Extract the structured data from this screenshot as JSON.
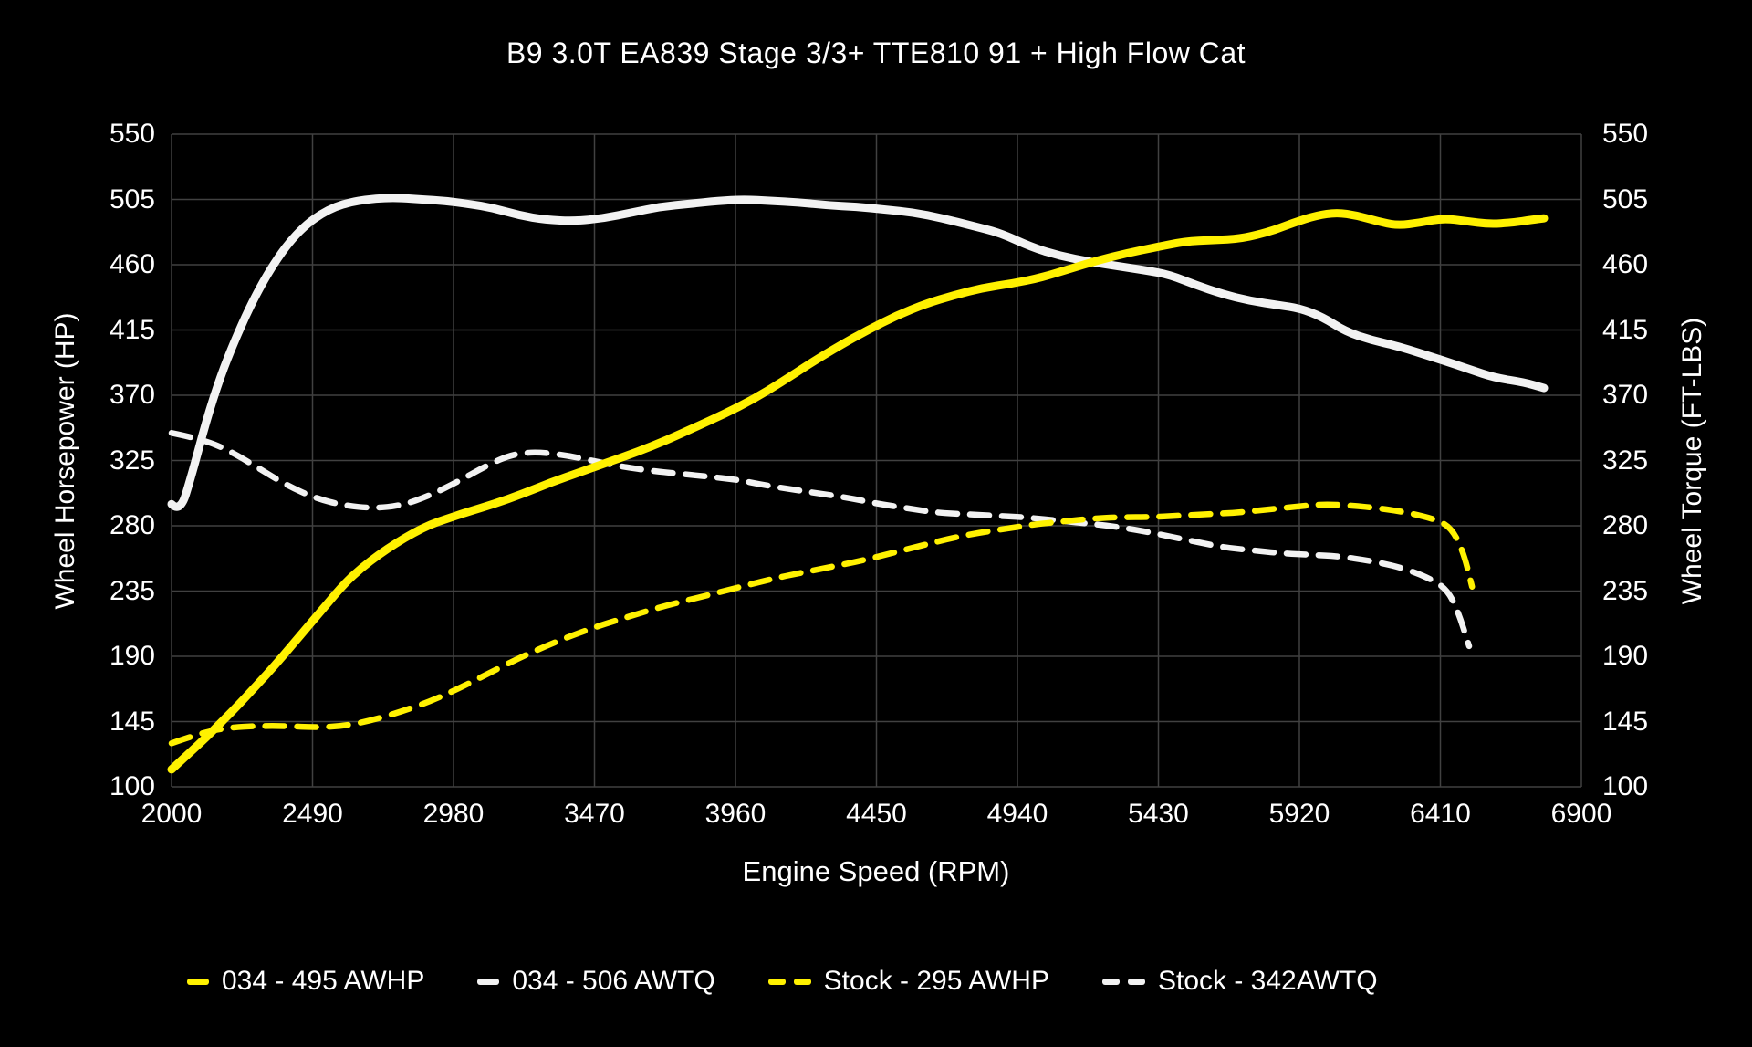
{
  "page": {
    "background": "#000000"
  },
  "chart_data": {
    "type": "line",
    "title": "B9 3.0T EA839 Stage 3/3+ TTE810 91 + High Flow Cat",
    "xlabel": "Engine Speed (RPM)",
    "ylabel_left": "Wheel Horsepower (HP)",
    "ylabel_right": "Wheel Torque (FT-LBS)",
    "xlim": [
      2000,
      6900
    ],
    "ylim": [
      100,
      550
    ],
    "x_ticks": [
      2000,
      2490,
      2980,
      3470,
      3960,
      4450,
      4940,
      5430,
      5920,
      6410,
      6900
    ],
    "y_ticks": [
      100,
      145,
      190,
      235,
      280,
      325,
      370,
      415,
      460,
      505,
      550
    ],
    "grid": true,
    "legend_position": "bottom",
    "colors": {
      "grid": "#414141",
      "text": "#ffffff",
      "yellow": "#fff100",
      "white": "#f2f2f2"
    },
    "draw_order": [
      3,
      2,
      1,
      0
    ],
    "series": [
      {
        "name": "034 - 495 AWHP",
        "color": "#fff100",
        "style": "solid",
        "points": [
          [
            2000,
            112
          ],
          [
            2060,
            123
          ],
          [
            2120,
            134
          ],
          [
            2180,
            146
          ],
          [
            2240,
            158
          ],
          [
            2300,
            171
          ],
          [
            2360,
            184
          ],
          [
            2420,
            198
          ],
          [
            2480,
            212
          ],
          [
            2540,
            226
          ],
          [
            2600,
            240
          ],
          [
            2660,
            251
          ],
          [
            2720,
            260
          ],
          [
            2780,
            268
          ],
          [
            2840,
            275
          ],
          [
            2900,
            281
          ],
          [
            2960,
            285
          ],
          [
            3020,
            289
          ],
          [
            3120,
            295
          ],
          [
            3220,
            302
          ],
          [
            3320,
            310
          ],
          [
            3420,
            317
          ],
          [
            3520,
            324
          ],
          [
            3620,
            331
          ],
          [
            3720,
            339
          ],
          [
            3820,
            348
          ],
          [
            3920,
            357
          ],
          [
            4020,
            367
          ],
          [
            4120,
            379
          ],
          [
            4220,
            392
          ],
          [
            4320,
            404
          ],
          [
            4420,
            415
          ],
          [
            4520,
            425
          ],
          [
            4620,
            433
          ],
          [
            4720,
            439
          ],
          [
            4820,
            444
          ],
          [
            4920,
            447
          ],
          [
            5020,
            451
          ],
          [
            5120,
            457
          ],
          [
            5220,
            463
          ],
          [
            5320,
            468
          ],
          [
            5420,
            472
          ],
          [
            5520,
            476
          ],
          [
            5620,
            477
          ],
          [
            5720,
            478
          ],
          [
            5820,
            483
          ],
          [
            5900,
            489
          ],
          [
            5980,
            494
          ],
          [
            6050,
            496
          ],
          [
            6120,
            494
          ],
          [
            6190,
            490
          ],
          [
            6260,
            487
          ],
          [
            6340,
            489
          ],
          [
            6420,
            492
          ],
          [
            6500,
            490
          ],
          [
            6580,
            488
          ],
          [
            6660,
            489
          ],
          [
            6730,
            491
          ],
          [
            6770,
            492
          ]
        ]
      },
      {
        "name": "034 - 506 AWTQ",
        "color": "#f2f2f2",
        "style": "solid",
        "points": [
          [
            2000,
            295
          ],
          [
            2030,
            289
          ],
          [
            2070,
            315
          ],
          [
            2120,
            352
          ],
          [
            2170,
            383
          ],
          [
            2220,
            408
          ],
          [
            2270,
            430
          ],
          [
            2320,
            449
          ],
          [
            2370,
            465
          ],
          [
            2420,
            478
          ],
          [
            2470,
            488
          ],
          [
            2520,
            495
          ],
          [
            2570,
            500
          ],
          [
            2620,
            503
          ],
          [
            2680,
            505
          ],
          [
            2740,
            506
          ],
          [
            2800,
            506
          ],
          [
            2870,
            505
          ],
          [
            2950,
            504
          ],
          [
            3030,
            502
          ],
          [
            3120,
            499
          ],
          [
            3210,
            494
          ],
          [
            3300,
            491
          ],
          [
            3400,
            490
          ],
          [
            3500,
            492
          ],
          [
            3600,
            496
          ],
          [
            3700,
            500
          ],
          [
            3800,
            502
          ],
          [
            3900,
            504
          ],
          [
            3990,
            505
          ],
          [
            4080,
            504
          ],
          [
            4180,
            503
          ],
          [
            4280,
            501
          ],
          [
            4380,
            500
          ],
          [
            4480,
            498
          ],
          [
            4580,
            496
          ],
          [
            4680,
            492
          ],
          [
            4780,
            487
          ],
          [
            4880,
            482
          ],
          [
            4990,
            472
          ],
          [
            5090,
            466
          ],
          [
            5190,
            462
          ],
          [
            5290,
            459
          ],
          [
            5390,
            456
          ],
          [
            5470,
            453
          ],
          [
            5560,
            446
          ],
          [
            5650,
            440
          ],
          [
            5750,
            435
          ],
          [
            5850,
            432
          ],
          [
            5920,
            430
          ],
          [
            6000,
            424
          ],
          [
            6080,
            414
          ],
          [
            6170,
            408
          ],
          [
            6260,
            404
          ],
          [
            6340,
            399
          ],
          [
            6420,
            394
          ],
          [
            6510,
            388
          ],
          [
            6600,
            382
          ],
          [
            6700,
            379
          ],
          [
            6770,
            375
          ]
        ]
      },
      {
        "name": "Stock - 295 AWHP",
        "color": "#fff100",
        "style": "dashed",
        "points": [
          [
            2000,
            130
          ],
          [
            2100,
            137
          ],
          [
            2200,
            141
          ],
          [
            2300,
            142
          ],
          [
            2400,
            142
          ],
          [
            2500,
            141
          ],
          [
            2600,
            142
          ],
          [
            2700,
            146
          ],
          [
            2800,
            152
          ],
          [
            2900,
            159
          ],
          [
            3000,
            168
          ],
          [
            3100,
            178
          ],
          [
            3200,
            188
          ],
          [
            3300,
            197
          ],
          [
            3400,
            205
          ],
          [
            3500,
            212
          ],
          [
            3600,
            218
          ],
          [
            3700,
            224
          ],
          [
            3800,
            229
          ],
          [
            3900,
            234
          ],
          [
            4000,
            239
          ],
          [
            4100,
            244
          ],
          [
            4200,
            248
          ],
          [
            4300,
            252
          ],
          [
            4400,
            256
          ],
          [
            4500,
            261
          ],
          [
            4600,
            266
          ],
          [
            4700,
            271
          ],
          [
            4800,
            275
          ],
          [
            4900,
            278
          ],
          [
            5000,
            281
          ],
          [
            5100,
            283
          ],
          [
            5200,
            285
          ],
          [
            5300,
            286
          ],
          [
            5400,
            286
          ],
          [
            5500,
            287
          ],
          [
            5600,
            288
          ],
          [
            5700,
            289
          ],
          [
            5800,
            291
          ],
          [
            5900,
            293
          ],
          [
            6000,
            295
          ],
          [
            6100,
            294
          ],
          [
            6200,
            292
          ],
          [
            6300,
            289
          ],
          [
            6400,
            284
          ],
          [
            6450,
            278
          ],
          [
            6490,
            262
          ],
          [
            6520,
            238
          ]
        ]
      },
      {
        "name": "Stock - 342AWTQ",
        "color": "#f2f2f2",
        "style": "dashed",
        "points": [
          [
            2000,
            344
          ],
          [
            2100,
            340
          ],
          [
            2200,
            332
          ],
          [
            2300,
            320
          ],
          [
            2400,
            308
          ],
          [
            2500,
            299
          ],
          [
            2600,
            294
          ],
          [
            2700,
            292
          ],
          [
            2800,
            294
          ],
          [
            2900,
            301
          ],
          [
            3000,
            311
          ],
          [
            3100,
            322
          ],
          [
            3180,
            329
          ],
          [
            3260,
            331
          ],
          [
            3360,
            329
          ],
          [
            3460,
            325
          ],
          [
            3560,
            321
          ],
          [
            3660,
            318
          ],
          [
            3760,
            316
          ],
          [
            3860,
            314
          ],
          [
            3960,
            312
          ],
          [
            4060,
            308
          ],
          [
            4160,
            305
          ],
          [
            4260,
            302
          ],
          [
            4360,
            299
          ],
          [
            4460,
            295
          ],
          [
            4560,
            292
          ],
          [
            4660,
            289
          ],
          [
            4760,
            288
          ],
          [
            4860,
            287
          ],
          [
            4960,
            286
          ],
          [
            5060,
            284
          ],
          [
            5160,
            282
          ],
          [
            5260,
            280
          ],
          [
            5360,
            277
          ],
          [
            5460,
            273
          ],
          [
            5560,
            269
          ],
          [
            5660,
            265
          ],
          [
            5760,
            263
          ],
          [
            5860,
            261
          ],
          [
            5960,
            260
          ],
          [
            6060,
            259
          ],
          [
            6160,
            256
          ],
          [
            6260,
            252
          ],
          [
            6360,
            245
          ],
          [
            6430,
            237
          ],
          [
            6470,
            222
          ],
          [
            6510,
            197
          ]
        ]
      }
    ]
  }
}
